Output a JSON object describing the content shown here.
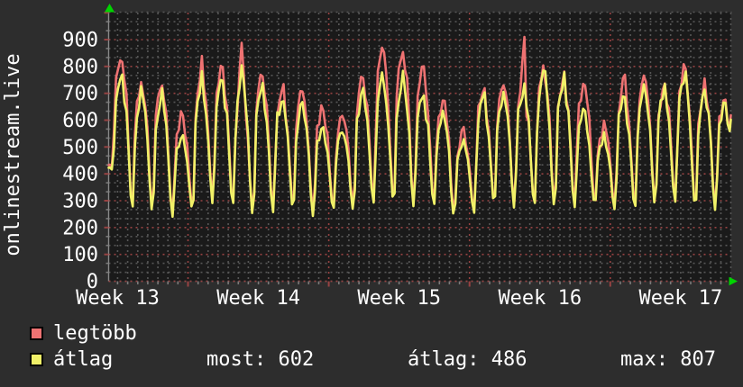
{
  "colors": {
    "background": "#2d2d2d",
    "plot_background": "#1a1a1a",
    "grid_minor": "#565656",
    "grid_major": "#964242",
    "axis": "#8a8a8a",
    "tick": "#7a7a7a",
    "arrow": "#00d400",
    "text": "#ffffff",
    "series_max": "#ee7272",
    "series_avg": "#f1f168",
    "swatch_border": "#000000"
  },
  "legend": {
    "items": [
      {
        "label": "legtöbb",
        "color": "#ee7272"
      },
      {
        "label": "átlag",
        "color": "#f1f168"
      }
    ]
  },
  "footer": {
    "stats": [
      {
        "text": "most: 602"
      },
      {
        "text": "átlag: 486"
      },
      {
        "text": "max: 807"
      }
    ]
  },
  "chart_data": {
    "type": "line",
    "title": "onlinestream.live",
    "x_axis": {
      "labels": [
        "Week 13",
        "Week 14",
        "Week 15",
        "Week 16",
        "Week 17"
      ],
      "unit": "week",
      "days_shown": 31
    },
    "y_axis": {
      "min": 0,
      "max": 1000,
      "tick_step": 100,
      "tick_labels": [
        "0",
        "100",
        "200",
        "300",
        "400",
        "500",
        "600",
        "700",
        "800",
        "900"
      ]
    },
    "grid": {
      "minor_y_step": 33.3,
      "minor_x_step_hours": 12,
      "major_y_step": 100,
      "major_x_step": "1 week"
    },
    "legend_position": "bottom-left",
    "stats": {
      "most": 602,
      "atlag": 486,
      "max": 807
    },
    "series": [
      {
        "name": "legtöbb",
        "color": "#ee7272",
        "current": 618,
        "spike_days": [
          6,
          20
        ],
        "daily_peak": [
          846,
          752,
          745,
          629,
          820,
          824,
          907,
          785,
          730,
          724,
          650,
          630,
          775,
          877,
          873,
          806,
          683,
          566,
          722,
          744,
          888,
          810,
          775,
          755,
          580,
          750,
          785,
          750,
          796,
          735,
          685
        ],
        "daily_trough": [
          429,
          283,
          271,
          255,
          277,
          304,
          299,
          254,
          272,
          282,
          254,
          283,
          277,
          304,
          305,
          288,
          294,
          255,
          271,
          299,
          288,
          294,
          288,
          292,
          294,
          282,
          286,
          294,
          312,
          285,
          279
        ]
      },
      {
        "name": "átlag",
        "color": "#f1f168",
        "current": 602,
        "spike_days": [],
        "daily_peak": [
          750,
          713,
          700,
          551,
          758,
          763,
          780,
          741,
          696,
          680,
          590,
          575,
          715,
          770,
          770,
          716,
          628,
          527,
          700,
          705,
          724,
          800,
          760,
          640,
          545,
          695,
          735,
          728,
          774,
          718,
          674
        ],
        "daily_trough": [
          415,
          269,
          257,
          241,
          263,
          290,
          285,
          240,
          258,
          268,
          240,
          269,
          263,
          290,
          291,
          274,
          280,
          241,
          257,
          285,
          274,
          280,
          274,
          278,
          280,
          268,
          272,
          280,
          298,
          271,
          265
        ]
      }
    ]
  }
}
